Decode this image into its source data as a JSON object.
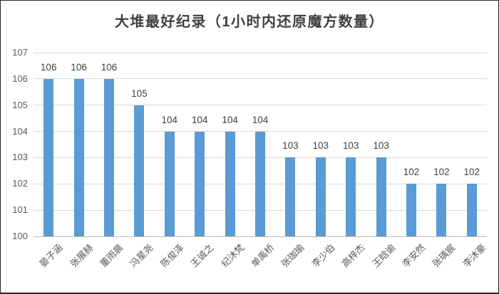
{
  "chart_data": {
    "type": "bar",
    "title": "大堆最好纪录（1小时内还原魔方数量）",
    "categories": [
      "晏子涵",
      "张展赫",
      "董雨晨",
      "冯星尧",
      "陈俊泽",
      "王诚之",
      "纪沐梵",
      "单禹桥",
      "张珈瑜",
      "李少伯",
      "高梓杰",
      "王晗谕",
      "李安然",
      "张瑀宸",
      "李沐豪"
    ],
    "values": [
      106,
      106,
      106,
      105,
      104,
      104,
      104,
      104,
      103,
      103,
      103,
      103,
      102,
      102,
      102
    ],
    "xlabel": "",
    "ylabel": "",
    "ylim": [
      100,
      107
    ],
    "ytick_step": 1,
    "yticks": [
      100,
      101,
      102,
      103,
      104,
      105,
      106,
      107
    ],
    "grid": true,
    "legend": "none",
    "data_labels": true,
    "bar_color": "#5B9BD5",
    "gridline_color": "#D9D9D9",
    "axis_line_color": "#BFBFBF",
    "title_color": "#404040",
    "tick_label_color": "#595959",
    "data_label_color": "#404040",
    "category_label_color": "#595959"
  }
}
